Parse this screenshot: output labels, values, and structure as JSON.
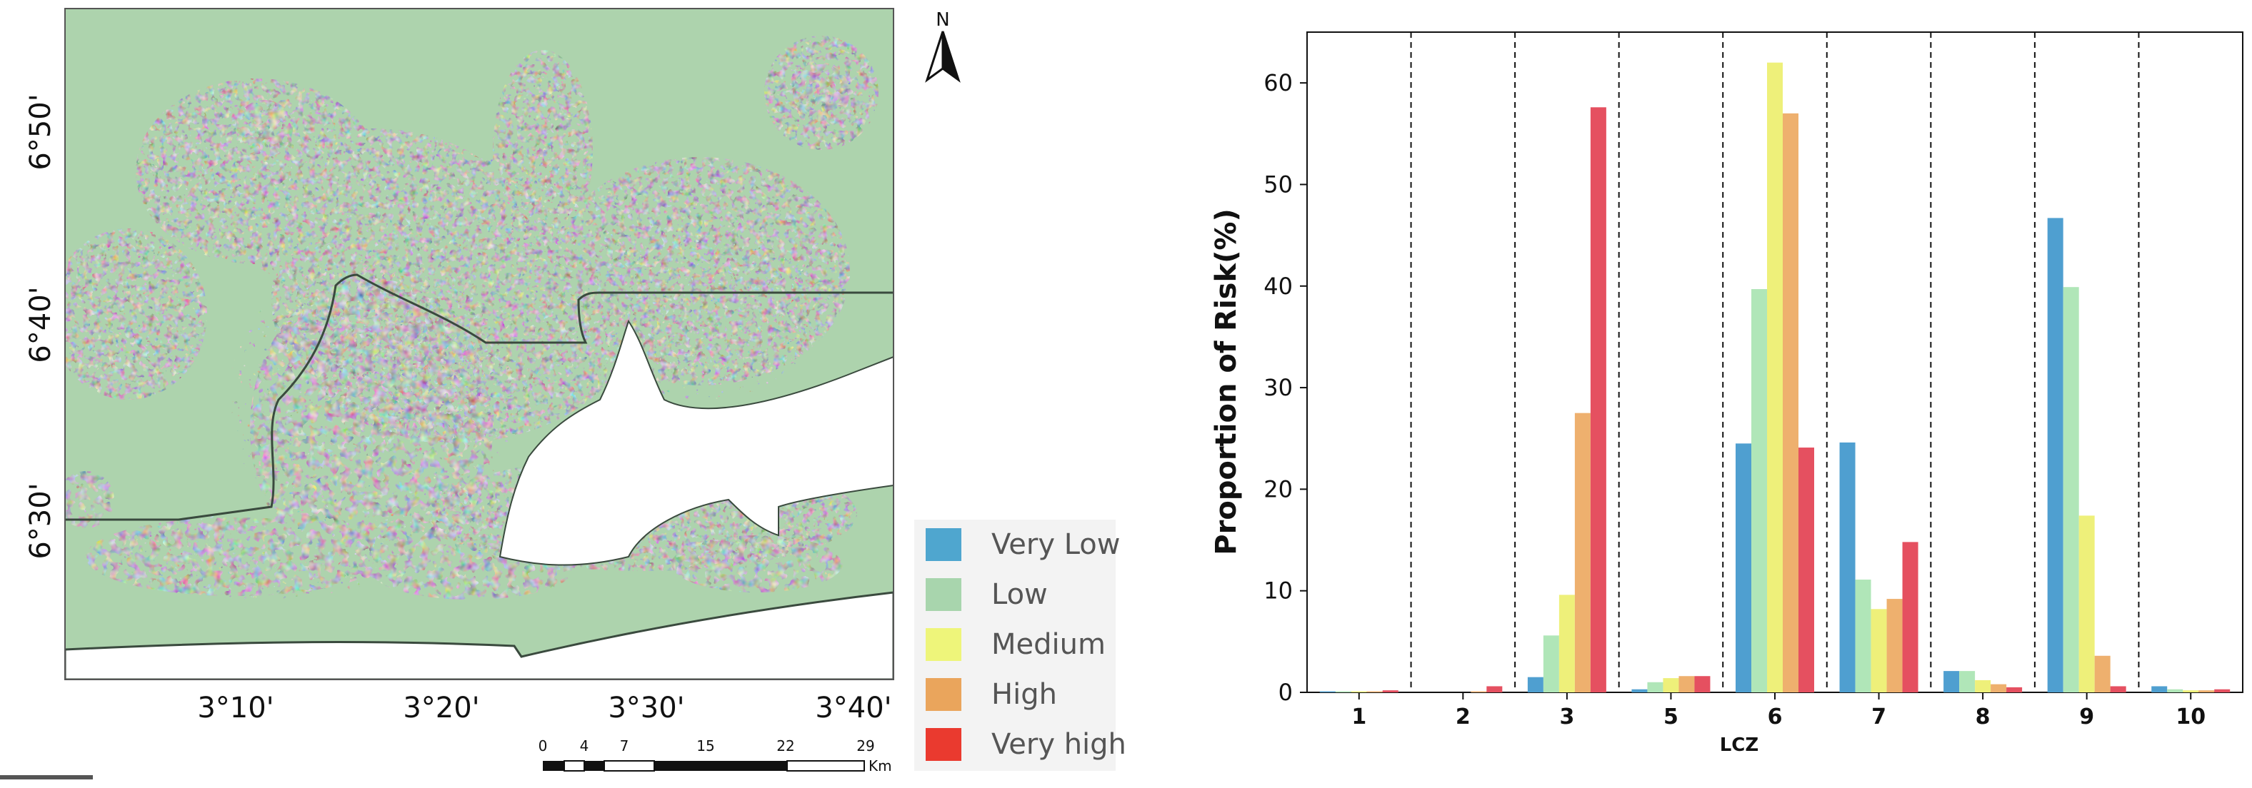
{
  "map": {
    "lat_labels": [
      "6°50'",
      "6°40'",
      "6°30'"
    ],
    "lon_labels": [
      "3°10'",
      "3°20'",
      "3°30'",
      "3°40'"
    ],
    "north_label": "N",
    "scale": {
      "ticks": [
        "0",
        "4",
        "7",
        "15",
        "22",
        "29"
      ],
      "unit": "Km"
    },
    "legend": [
      {
        "label": "Very Low",
        "color": "#4fa6cf"
      },
      {
        "label": "Low",
        "color": "#a8d5ad"
      },
      {
        "label": "Medium",
        "color": "#eef57a"
      },
      {
        "label": "High",
        "color": "#eaa55c"
      },
      {
        "label": "Very high",
        "color": "#ea3a2f"
      }
    ],
    "colors": {
      "land": "#add3ad",
      "water": "#ffffff",
      "boundary": "#3a4a3e"
    }
  },
  "chart_data": {
    "type": "bar",
    "categories": [
      "1",
      "2",
      "3",
      "5",
      "6",
      "7",
      "8",
      "9",
      "10"
    ],
    "series": [
      {
        "name": "Very Low",
        "color": "#4f9fd0",
        "values": [
          0.1,
          0.0,
          1.5,
          0.3,
          24.5,
          24.6,
          2.1,
          46.7,
          0.6
        ]
      },
      {
        "name": "Low",
        "color": "#b0e6b8",
        "values": [
          0.1,
          0.0,
          5.6,
          1.0,
          39.7,
          11.1,
          2.1,
          39.9,
          0.3
        ]
      },
      {
        "name": "Medium",
        "color": "#eef07a",
        "values": [
          0.1,
          0.0,
          9.6,
          1.4,
          62.0,
          8.2,
          1.2,
          17.4,
          0.2
        ]
      },
      {
        "name": "High",
        "color": "#eeb06e",
        "values": [
          0.1,
          0.1,
          27.5,
          1.6,
          57.0,
          9.2,
          0.8,
          3.6,
          0.2
        ]
      },
      {
        "name": "Very high",
        "color": "#e55060",
        "values": [
          0.2,
          0.6,
          57.6,
          1.6,
          24.1,
          14.8,
          0.5,
          0.6,
          0.3
        ]
      }
    ],
    "yticks": [
      0,
      10,
      20,
      30,
      40,
      50,
      60
    ],
    "ylim": [
      0,
      65
    ],
    "xlabel": "LCZ",
    "ylabel": "Proportion of Risk(%)",
    "separators": "dashed",
    "grid": false
  }
}
